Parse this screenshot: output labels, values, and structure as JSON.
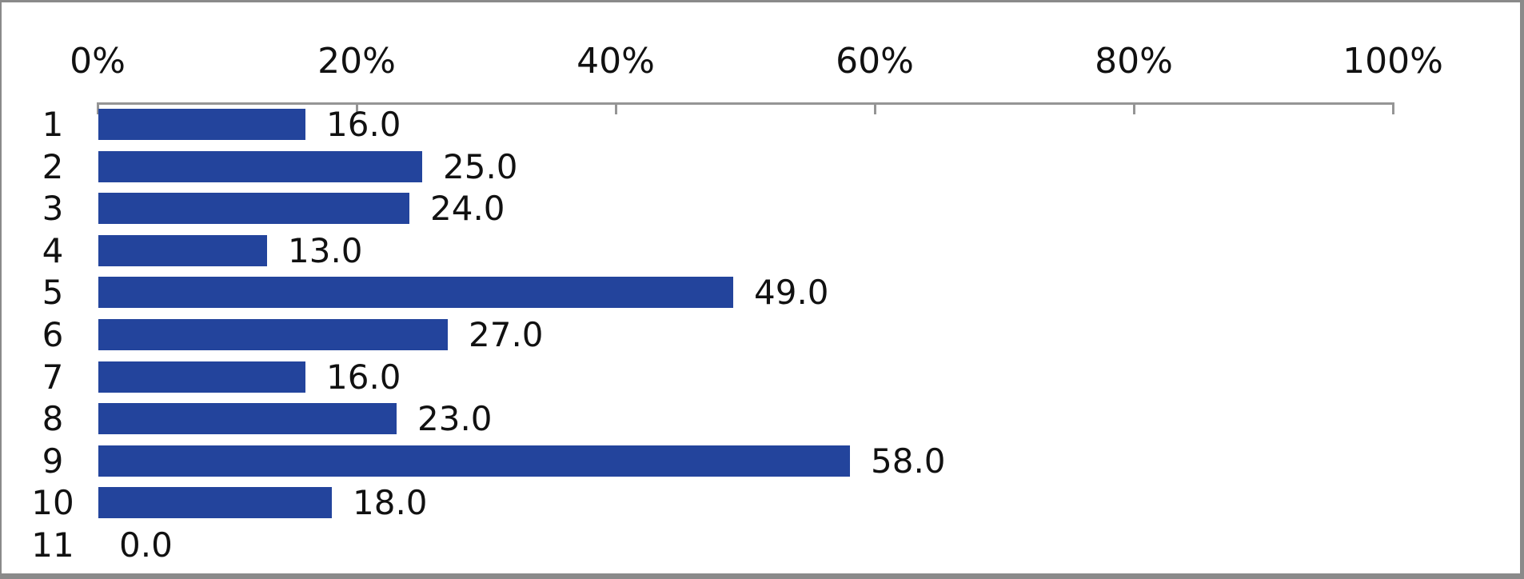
{
  "chart_data": {
    "type": "bar",
    "orientation": "horizontal",
    "title": "",
    "xlabel": "",
    "ylabel": "",
    "categories": [
      "1",
      "2",
      "3",
      "4",
      "5",
      "6",
      "7",
      "8",
      "9",
      "10",
      "11"
    ],
    "values": [
      16.0,
      25.0,
      24.0,
      13.0,
      49.0,
      27.0,
      16.0,
      23.0,
      58.0,
      18.0,
      0.0
    ],
    "data_labels": [
      "16.0",
      "25.0",
      "24.0",
      "13.0",
      "49.0",
      "27.0",
      "16.0",
      "23.0",
      "58.0",
      "18.0",
      "0.0"
    ],
    "xlim": [
      0,
      100
    ],
    "x_ticks": [
      {
        "value": 0,
        "label": "0%"
      },
      {
        "value": 20,
        "label": "20%"
      },
      {
        "value": 40,
        "label": "40%"
      },
      {
        "value": 60,
        "label": "60%"
      },
      {
        "value": 80,
        "label": "80%"
      },
      {
        "value": 100,
        "label": "100%"
      }
    ],
    "axis_position": "top",
    "grid": false,
    "legend": "none",
    "colors": {
      "bar": "#23449c",
      "axis": "#959595",
      "text": "#111111",
      "frame_border": "#8a8a8a",
      "background": "#ffffff"
    }
  }
}
